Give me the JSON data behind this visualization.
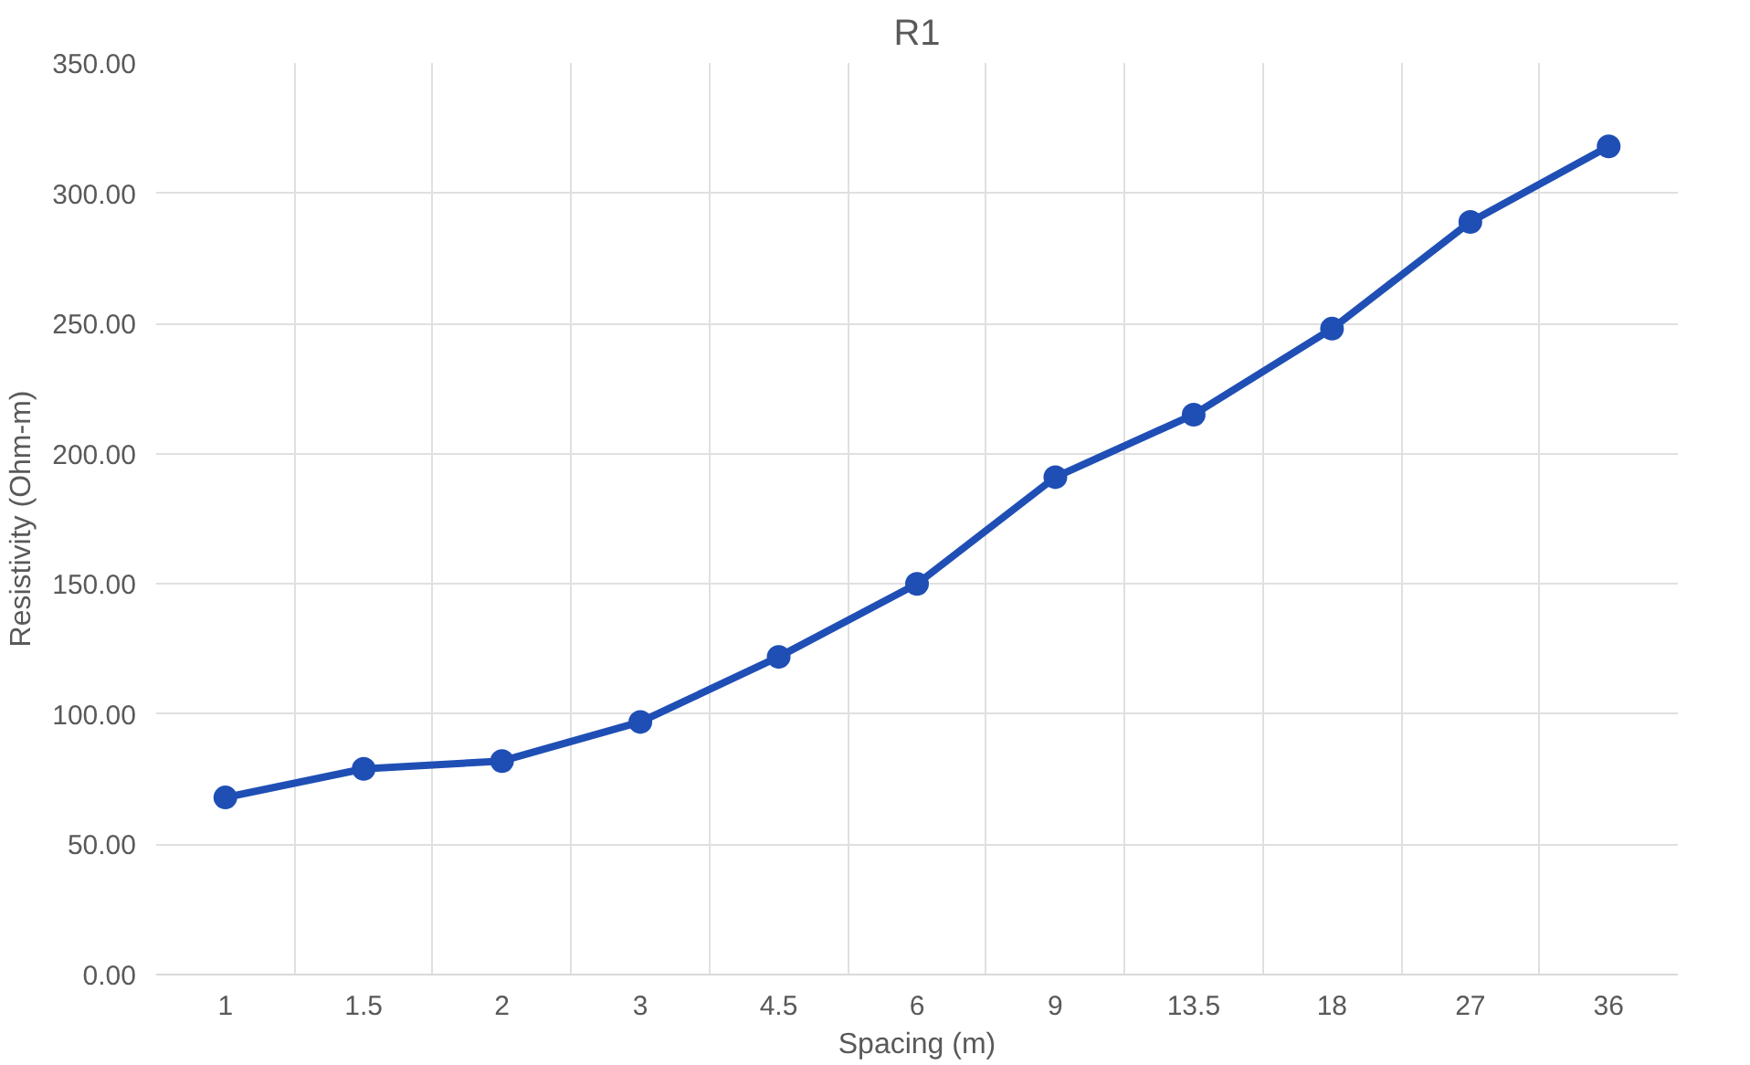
{
  "chart_data": {
    "type": "line",
    "title": "R1",
    "xlabel": "Spacing (m)",
    "ylabel": "Resistivity (Ohm-m)",
    "categories": [
      "1",
      "1.5",
      "2",
      "3",
      "4.5",
      "6",
      "9",
      "13.5",
      "18",
      "27",
      "36"
    ],
    "series": [
      {
        "color": "#1f4fb5",
        "values": [
          68,
          79,
          82,
          97,
          122,
          150,
          191,
          215,
          248,
          289,
          318
        ]
      }
    ],
    "ylim": [
      0,
      350
    ],
    "yticks": [
      {
        "value": 0,
        "label": "0.00"
      },
      {
        "value": 50,
        "label": "50.00"
      },
      {
        "value": 100,
        "label": "100.00"
      },
      {
        "value": 150,
        "label": "150.00"
      },
      {
        "value": 200,
        "label": "200.00"
      },
      {
        "value": 250,
        "label": "250.00"
      },
      {
        "value": 300,
        "label": "300.00"
      },
      {
        "value": 350,
        "label": "350.00"
      }
    ],
    "grid": true,
    "marker": "circle",
    "line_style": "solid"
  }
}
